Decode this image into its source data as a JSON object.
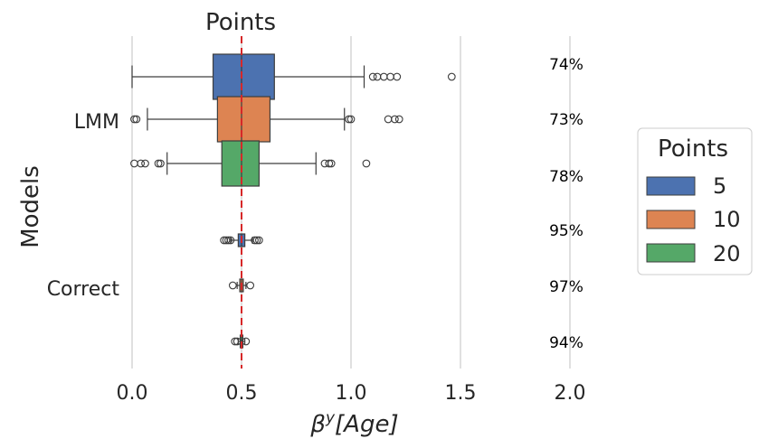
{
  "chart_data": {
    "type": "boxplot",
    "orientation": "horizontal",
    "title": "Points",
    "xlabel": "β^y[Age]",
    "xlabel_parts": {
      "beta": "β",
      "sup": "y",
      "rest": "[Age]"
    },
    "ylabel": "Models",
    "xlim": [
      0.0,
      2.0
    ],
    "xticks": [
      "0.0",
      "0.5",
      "1.0",
      "1.5",
      "2.0"
    ],
    "xtick_values": [
      0.0,
      0.5,
      1.0,
      1.5,
      2.0
    ],
    "reference_line": {
      "value": 0.5,
      "color": "#d62728",
      "style": "dashed"
    },
    "categories": [
      "LMM",
      "Correct"
    ],
    "legend": {
      "title": "Points",
      "placement": "right",
      "entries": [
        {
          "label": "5",
          "color": "#4c72b0"
        },
        {
          "label": "10",
          "color": "#dd8452"
        },
        {
          "label": "20",
          "color": "#55a868"
        }
      ]
    },
    "series": [
      {
        "name": "5",
        "color": "#4c72b0",
        "boxes": [
          {
            "category": "LMM",
            "whisker_low": 0.0,
            "q1": 0.37,
            "median": 0.5,
            "q3": 0.65,
            "whisker_high": 1.06,
            "outliers": [
              1.1,
              1.12,
              1.15,
              1.18,
              1.21,
              1.46
            ]
          },
          {
            "category": "Correct",
            "whisker_low": 0.45,
            "q1": 0.485,
            "median": 0.5,
            "q3": 0.515,
            "whisker_high": 0.55,
            "outliers": [
              0.42,
              0.43,
              0.44,
              0.45,
              0.56,
              0.57,
              0.58
            ]
          }
        ]
      },
      {
        "name": "10",
        "color": "#dd8452",
        "boxes": [
          {
            "category": "LMM",
            "whisker_low": 0.07,
            "q1": 0.39,
            "median": 0.5,
            "q3": 0.63,
            "whisker_high": 0.97,
            "outliers": [
              0.01,
              0.02,
              0.99,
              1.0,
              1.17,
              1.2,
              1.22
            ]
          },
          {
            "category": "Correct",
            "whisker_low": 0.48,
            "q1": 0.492,
            "median": 0.5,
            "q3": 0.508,
            "whisker_high": 0.52,
            "outliers": [
              0.46,
              0.54
            ]
          }
        ]
      },
      {
        "name": "20",
        "color": "#55a868",
        "boxes": [
          {
            "category": "LMM",
            "whisker_low": 0.16,
            "q1": 0.41,
            "median": 0.5,
            "q3": 0.58,
            "whisker_high": 0.84,
            "outliers": [
              0.01,
              0.04,
              0.06,
              0.12,
              0.13,
              0.88,
              0.9,
              0.91,
              1.07
            ]
          },
          {
            "category": "Correct",
            "whisker_low": 0.485,
            "q1": 0.494,
            "median": 0.5,
            "q3": 0.506,
            "whisker_high": 0.515,
            "outliers": [
              0.47,
              0.48,
              0.52
            ]
          }
        ]
      }
    ],
    "coverage_annotations": [
      "74%",
      "73%",
      "78%",
      "95%",
      "97%",
      "94%"
    ]
  }
}
